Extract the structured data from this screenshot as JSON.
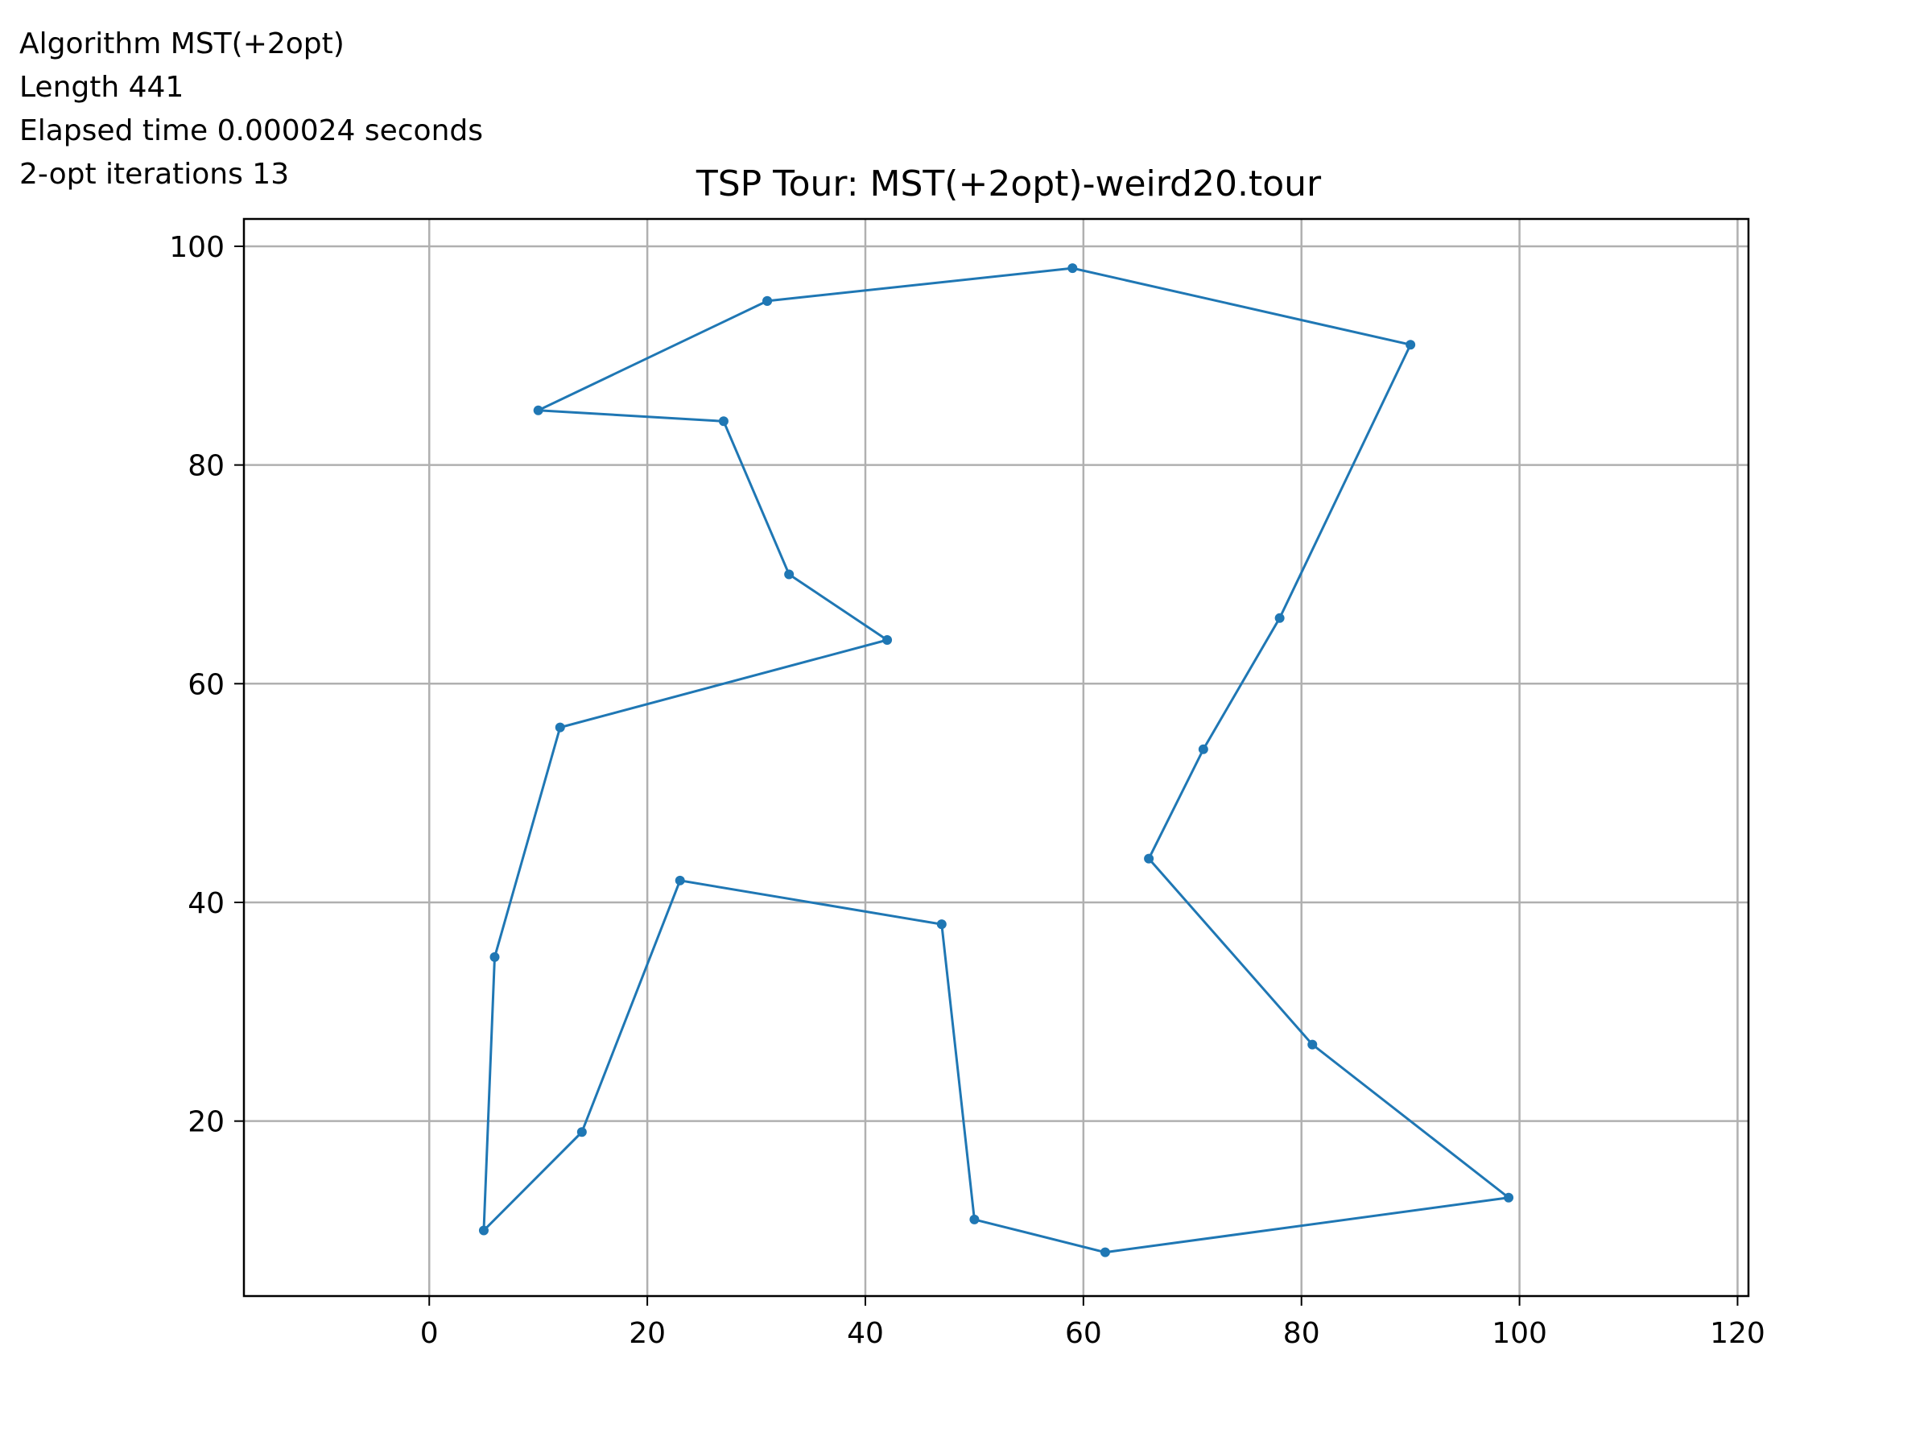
{
  "info": {
    "algorithm": "Algorithm MST(+2opt)",
    "length": "Length 441",
    "elapsed": "Elapsed time 0.000024 seconds",
    "iterations": "2-opt iterations 13"
  },
  "chart_data": {
    "type": "line",
    "title": "TSP Tour: MST(+2opt)-weird20.tour",
    "xlabel": "",
    "ylabel": "",
    "xlim": [
      -17,
      121
    ],
    "ylim": [
      4,
      102.5
    ],
    "xticks": [
      0,
      20,
      40,
      60,
      80,
      100,
      120
    ],
    "yticks": [
      20,
      40,
      60,
      80,
      100
    ],
    "grid": true,
    "line_color": "#1f77b4",
    "tour": {
      "x": [
        31,
        59,
        90,
        78,
        71,
        66,
        81,
        99,
        62,
        50,
        47,
        23,
        14,
        5,
        6,
        12,
        42,
        33,
        27,
        10,
        31
      ],
      "y": [
        95,
        98,
        91,
        66,
        54,
        44,
        27,
        13,
        8,
        11,
        38,
        42,
        19,
        10,
        35,
        56,
        64,
        70,
        84,
        85,
        95
      ]
    }
  }
}
